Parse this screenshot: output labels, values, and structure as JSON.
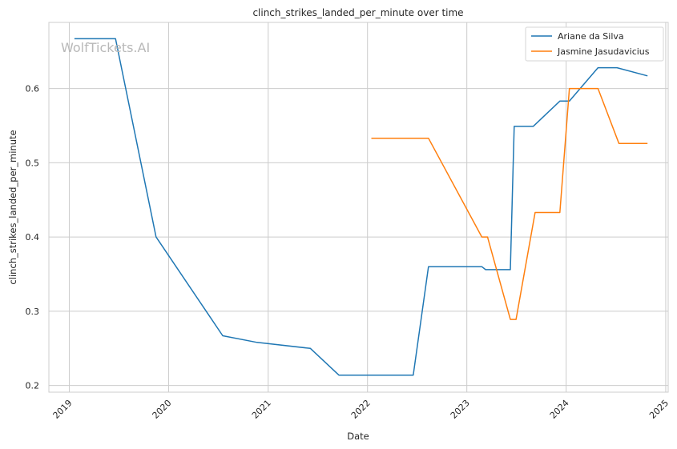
{
  "chart_data": {
    "type": "line",
    "title": "clinch_strikes_landed_per_minute over time",
    "xlabel": "Date",
    "ylabel": "clinch_strikes_landed_per_minute",
    "watermark": "WolfTickets.AI",
    "x_ticks": [
      "2019",
      "2020",
      "2021",
      "2022",
      "2023",
      "2024",
      "2025"
    ],
    "y_ticks": [
      "0.2",
      "0.3",
      "0.4",
      "0.5",
      "0.6"
    ],
    "xlim": [
      "2018-10-18",
      "2025-01-10"
    ],
    "ylim": [
      0.191,
      0.689
    ],
    "grid": true,
    "legend_position": "top-right",
    "series": [
      {
        "name": "Ariane da Silva",
        "color": "#1f77b4",
        "points": [
          [
            "2019-01-20",
            0.667
          ],
          [
            "2019-06-20",
            0.667
          ],
          [
            "2019-11-16",
            0.4
          ],
          [
            "2020-07-18",
            0.267
          ],
          [
            "2020-11-21",
            0.258
          ],
          [
            "2021-06-05",
            0.25
          ],
          [
            "2021-09-18",
            0.214
          ],
          [
            "2022-06-18",
            0.214
          ],
          [
            "2022-08-13",
            0.36
          ],
          [
            "2023-02-25",
            0.36
          ],
          [
            "2023-03-11",
            0.356
          ],
          [
            "2023-06-10",
            0.356
          ],
          [
            "2023-06-24",
            0.549
          ],
          [
            "2023-09-02",
            0.549
          ],
          [
            "2023-12-09",
            0.583
          ],
          [
            "2024-01-13",
            0.583
          ],
          [
            "2024-04-27",
            0.628
          ],
          [
            "2024-07-06",
            0.628
          ],
          [
            "2024-10-26",
            0.617
          ]
        ]
      },
      {
        "name": "Jasmine Jasudavicius",
        "color": "#ff7f0e",
        "points": [
          [
            "2022-01-15",
            0.533
          ],
          [
            "2022-08-13",
            0.533
          ],
          [
            "2023-02-25",
            0.4
          ],
          [
            "2023-03-18",
            0.4
          ],
          [
            "2023-06-10",
            0.289
          ],
          [
            "2023-07-01",
            0.289
          ],
          [
            "2023-09-09",
            0.433
          ],
          [
            "2023-12-09",
            0.433
          ],
          [
            "2024-01-13",
            0.6
          ],
          [
            "2024-04-27",
            0.6
          ],
          [
            "2024-07-13",
            0.526
          ],
          [
            "2024-10-26",
            0.526
          ]
        ]
      }
    ]
  }
}
